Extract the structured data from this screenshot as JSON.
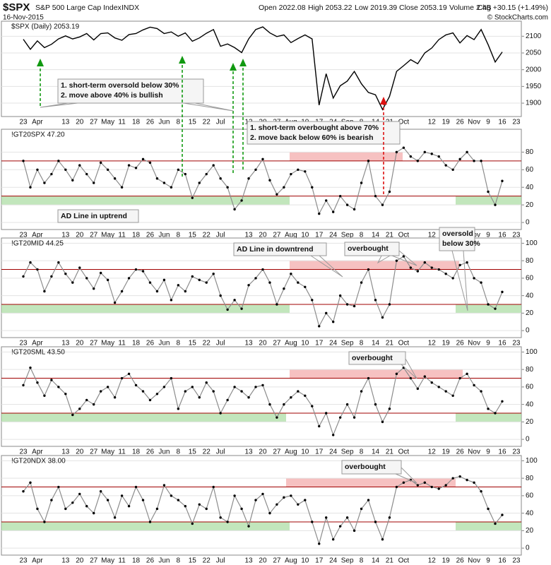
{
  "header": {
    "symbol": "$SPX",
    "name": "S&P 500 Large Cap Index",
    "exchange": "INDX",
    "date": "16-Nov-2015",
    "open": "Open 2022.08",
    "high": "High 2053.22",
    "low": "Low 2019.39",
    "close": "Close 2053.19",
    "volume": "Volume 2.4B",
    "change": "Chg +30.15 (+1.49%)",
    "credit": "© StockCharts.com"
  },
  "chart_data": [
    {
      "type": "line",
      "title": "$SPX (Daily) 2053.19",
      "color": "#000000",
      "markers": false,
      "categories": [
        "23",
        null,
        "Apr",
        null,
        null,
        null,
        "13",
        null,
        "20",
        null,
        "27",
        null,
        "May",
        null,
        "11",
        null,
        "18",
        null,
        "26",
        null,
        "Jun",
        null,
        "8",
        null,
        "15",
        null,
        "22",
        null,
        "Jul",
        null,
        null,
        null,
        "13",
        null,
        "20",
        null,
        "27",
        null,
        "Aug",
        null,
        "10",
        null,
        "17",
        null,
        "24",
        null,
        "Sep",
        null,
        "8",
        null,
        "14",
        null,
        "21",
        null,
        "Oct",
        null,
        null,
        null,
        "12",
        null,
        "19",
        null,
        "26",
        null,
        "Nov",
        null,
        "9",
        null,
        "16",
        null,
        "23",
        null
      ],
      "values": [
        2091,
        2061,
        2086,
        2066,
        2076,
        2092,
        2101,
        2092,
        2098,
        2108,
        2089,
        2108,
        2110,
        2095,
        2088,
        2105,
        2108,
        2119,
        2127,
        2123,
        2108,
        2113,
        2100,
        2110,
        2085,
        2095,
        2109,
        2120,
        2070,
        2077,
        2066,
        2051,
        2092,
        2120,
        2128,
        2110,
        2099,
        2104,
        2081,
        2093,
        2104,
        2092,
        1894,
        1988,
        1915,
        1952,
        1966,
        1995,
        1958,
        1932,
        1925,
        1881,
        1920,
        1995,
        2012,
        2030,
        2018,
        2050,
        2065,
        2090,
        2104,
        2110,
        2080,
        2102,
        2090,
        2120,
        2075,
        2023,
        2053,
        null,
        null,
        null
      ],
      "ylim": [
        1860,
        2145
      ],
      "yticks": [
        1900,
        1950,
        2000,
        2050,
        2100
      ],
      "grid": true,
      "annotations": [
        {
          "text": [
            "1. short-term oversold below 30%",
            "2. move above 40% is bullish"
          ],
          "color": "#119911"
        },
        {
          "text": [
            "1. short-term overbought above 70%",
            "2. move back below 60% is bearish"
          ],
          "color": "#dd1111"
        }
      ]
    },
    {
      "type": "line",
      "title": "!GT20SPX 47.20",
      "color": "#8c8c8c",
      "markers": true,
      "categories": [
        "23",
        null,
        "Apr",
        null,
        null,
        null,
        "13",
        null,
        "20",
        null,
        "27",
        null,
        "May",
        null,
        "11",
        null,
        "18",
        null,
        "26",
        null,
        "Jun",
        null,
        "8",
        null,
        "15",
        null,
        "22",
        null,
        "Jul",
        null,
        null,
        null,
        "13",
        null,
        "20",
        null,
        "27",
        null,
        "Aug",
        null,
        "10",
        null,
        "17",
        null,
        "24",
        null,
        "Sep",
        null,
        "8",
        null,
        "14",
        null,
        "21",
        null,
        "Oct",
        null,
        null,
        null,
        "12",
        null,
        "19",
        null,
        "26",
        null,
        "Nov",
        null,
        "9",
        null,
        "16",
        null,
        "23",
        null
      ],
      "values": [
        70,
        40,
        60,
        45,
        55,
        70,
        60,
        48,
        65,
        55,
        45,
        68,
        60,
        50,
        40,
        65,
        62,
        72,
        68,
        50,
        45,
        40,
        60,
        55,
        28,
        45,
        55,
        65,
        50,
        40,
        15,
        25,
        50,
        60,
        72,
        48,
        32,
        40,
        55,
        60,
        58,
        40,
        10,
        25,
        12,
        30,
        20,
        15,
        45,
        70,
        30,
        20,
        35,
        80,
        85,
        75,
        70,
        80,
        78,
        75,
        65,
        60,
        72,
        80,
        70,
        70,
        35,
        20,
        47.2,
        null,
        null,
        null
      ],
      "ylim": [
        -8,
        106
      ],
      "yticks": [
        0,
        20,
        40,
        60,
        80
      ],
      "grid": true,
      "reference_lines": [
        30,
        70
      ],
      "reference_color": "#a00000",
      "bands": [
        {
          "range": [
            20,
            30
          ],
          "color": "#a8dba0"
        },
        {
          "range": [
            70,
            80
          ],
          "color": "#f2a6a6"
        }
      ],
      "annotations": [
        {
          "text": [
            "AD Line in uptrend"
          ],
          "color": "#119911"
        }
      ]
    },
    {
      "type": "line",
      "title": "!GT20MID 44.25",
      "color": "#8c8c8c",
      "markers": true,
      "categories": [
        "23",
        null,
        "Apr",
        null,
        null,
        null,
        "13",
        null,
        "20",
        null,
        "27",
        null,
        "May",
        null,
        "11",
        null,
        "18",
        null,
        "26",
        null,
        "Jun",
        null,
        "8",
        null,
        "15",
        null,
        "22",
        null,
        "Jul",
        null,
        null,
        null,
        "13",
        null,
        "20",
        null,
        "27",
        null,
        "Aug",
        null,
        "10",
        null,
        "17",
        null,
        "24",
        null,
        "Sep",
        null,
        "8",
        null,
        "14",
        null,
        "21",
        null,
        "Oct",
        null,
        null,
        null,
        "12",
        null,
        "19",
        null,
        "26",
        null,
        "Nov",
        null,
        "9",
        null,
        "16",
        null,
        "23",
        null
      ],
      "values": [
        62,
        78,
        70,
        45,
        62,
        78,
        65,
        55,
        72,
        60,
        48,
        66,
        58,
        32,
        45,
        60,
        70,
        68,
        55,
        45,
        58,
        35,
        52,
        45,
        62,
        58,
        55,
        65,
        40,
        24,
        35,
        25,
        52,
        60,
        70,
        55,
        30,
        48,
        65,
        55,
        50,
        35,
        5,
        20,
        10,
        40,
        30,
        28,
        55,
        70,
        35,
        15,
        30,
        80,
        85,
        72,
        68,
        78,
        72,
        70,
        65,
        60,
        75,
        78,
        60,
        55,
        30,
        25,
        44.25,
        null,
        null,
        null
      ],
      "ylim": [
        -8,
        106
      ],
      "yticks": [
        0,
        20,
        40,
        60,
        80,
        100
      ],
      "grid": true,
      "reference_lines": [
        30,
        70
      ],
      "reference_color": "#a00000",
      "bands": [
        {
          "range": [
            20,
            30
          ],
          "color": "#a8dba0"
        },
        {
          "range": [
            70,
            80
          ],
          "color": "#f2a6a6"
        }
      ],
      "annotations": [
        {
          "text": [
            "AD Line in downtrend"
          ],
          "color": "#dd1111"
        },
        {
          "text": [
            "overbought"
          ],
          "color": "#dd1111"
        },
        {
          "text": [
            "oversold",
            "below 30%"
          ],
          "color": "#119911"
        }
      ]
    },
    {
      "type": "line",
      "title": "!GT20SML 43.50",
      "color": "#8c8c8c",
      "markers": true,
      "categories": [
        "23",
        null,
        "Apr",
        null,
        null,
        null,
        "13",
        null,
        "20",
        null,
        "27",
        null,
        "May",
        null,
        "11",
        null,
        "18",
        null,
        "26",
        null,
        "Jun",
        null,
        "8",
        null,
        "15",
        null,
        "22",
        null,
        "Jul",
        null,
        null,
        null,
        "13",
        null,
        "20",
        null,
        "27",
        null,
        "Aug",
        null,
        "10",
        null,
        "17",
        null,
        "24",
        null,
        "Sep",
        null,
        "8",
        null,
        "14",
        null,
        "21",
        null,
        "Oct",
        null,
        null,
        null,
        "12",
        null,
        "19",
        null,
        "26",
        null,
        "Nov",
        null,
        "9",
        null,
        "16",
        null,
        "23",
        null
      ],
      "values": [
        62,
        82,
        65,
        50,
        68,
        60,
        52,
        28,
        35,
        45,
        40,
        55,
        60,
        48,
        70,
        75,
        62,
        55,
        45,
        52,
        60,
        70,
        35,
        55,
        60,
        48,
        65,
        55,
        30,
        45,
        60,
        55,
        48,
        60,
        62,
        40,
        25,
        40,
        48,
        55,
        50,
        38,
        15,
        30,
        5,
        25,
        40,
        25,
        55,
        70,
        40,
        20,
        35,
        75,
        82,
        70,
        58,
        72,
        65,
        60,
        55,
        50,
        70,
        75,
        62,
        55,
        35,
        30,
        43.5,
        null,
        null,
        null
      ],
      "ylim": [
        -8,
        106
      ],
      "yticks": [
        0,
        20,
        40,
        60,
        80,
        100
      ],
      "grid": true,
      "reference_lines": [
        30,
        70
      ],
      "reference_color": "#a00000",
      "bands": [
        {
          "range": [
            20,
            30
          ],
          "color": "#a8dba0"
        },
        {
          "range": [
            70,
            80
          ],
          "color": "#f2a6a6"
        }
      ],
      "annotations": [
        {
          "text": [
            "overbought"
          ],
          "color": "#dd1111"
        }
      ]
    },
    {
      "type": "line",
      "title": "!GT20NDX 38.00",
      "color": "#8c8c8c",
      "markers": true,
      "categories": [
        "23",
        null,
        "Apr",
        null,
        null,
        null,
        "13",
        null,
        "20",
        null,
        "27",
        null,
        "May",
        null,
        "11",
        null,
        "18",
        null,
        "26",
        null,
        "Jun",
        null,
        "8",
        null,
        "15",
        null,
        "22",
        null,
        "Jul",
        null,
        null,
        null,
        "13",
        null,
        "20",
        null,
        "27",
        null,
        "Aug",
        null,
        "10",
        null,
        "17",
        null,
        "24",
        null,
        "Sep",
        null,
        "8",
        null,
        "14",
        null,
        "21",
        null,
        "Oct",
        null,
        null,
        null,
        "12",
        null,
        "19",
        null,
        "26",
        null,
        "Nov",
        null,
        "9",
        null,
        "16",
        null,
        "23",
        null
      ],
      "values": [
        65,
        75,
        45,
        30,
        55,
        70,
        45,
        52,
        62,
        48,
        40,
        65,
        55,
        35,
        60,
        48,
        70,
        55,
        30,
        45,
        72,
        60,
        55,
        48,
        28,
        50,
        45,
        70,
        35,
        30,
        60,
        45,
        25,
        55,
        62,
        40,
        50,
        58,
        60,
        50,
        55,
        30,
        5,
        35,
        10,
        25,
        35,
        20,
        45,
        55,
        30,
        10,
        35,
        70,
        75,
        78,
        72,
        75,
        70,
        68,
        72,
        80,
        82,
        78,
        75,
        65,
        45,
        28,
        38,
        null,
        null,
        null
      ],
      "ylim": [
        -8,
        106
      ],
      "yticks": [
        0,
        20,
        40,
        60,
        80,
        100
      ],
      "grid": true,
      "reference_lines": [
        30,
        70
      ],
      "reference_color": "#a00000",
      "bands": [
        {
          "range": [
            20,
            30
          ],
          "color": "#a8dba0"
        },
        {
          "range": [
            70,
            80
          ],
          "color": "#f2a6a6"
        }
      ],
      "annotations": [
        {
          "text": [
            "overbought"
          ],
          "color": "#dd1111"
        }
      ]
    }
  ]
}
